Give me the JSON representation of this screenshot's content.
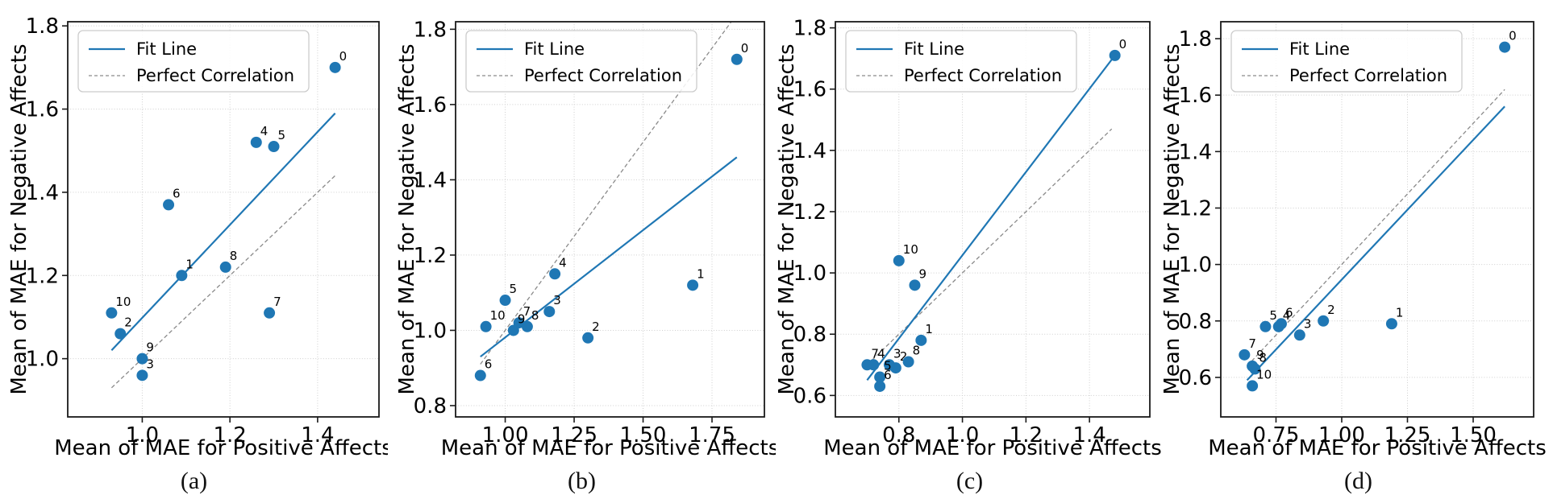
{
  "figure": {
    "xlabel": "Mean of MAE for Positive Affects",
    "ylabel": "Mean of MAE for Negative Affects",
    "legend": {
      "fit": {
        "label": "Fit Line",
        "color": "#1f77b4",
        "style": "solid"
      },
      "perfect": {
        "label": "Perfect Correlation",
        "color": "#8a8a8a",
        "style": "dashed"
      }
    },
    "colors": {
      "point": "#1f77b4",
      "fit_line": "#1f77b4",
      "perfect_line": "#8a8a8a",
      "grid": "#cfcfcf",
      "spine": "#1a1a1a",
      "text": "#000000"
    }
  },
  "chart_data": [
    {
      "type": "scatter",
      "caption": "(a)",
      "xlabel": "Mean of MAE for Positive Affects",
      "ylabel": "Mean of MAE for Negative Affects",
      "xlim": [
        0.83,
        1.54
      ],
      "ylim": [
        0.86,
        1.81
      ],
      "xticks": [
        1.0,
        1.2,
        1.4
      ],
      "xtick_labels": [
        "1.0",
        "1.2",
        "1.4"
      ],
      "yticks": [
        1.0,
        1.2,
        1.4,
        1.6,
        1.8
      ],
      "ytick_labels": [
        "1.0",
        "1.2",
        "1.4",
        "1.6",
        "1.8"
      ],
      "points": [
        {
          "label": "0",
          "x": 1.44,
          "y": 1.7
        },
        {
          "label": "1",
          "x": 1.09,
          "y": 1.2
        },
        {
          "label": "2",
          "x": 0.95,
          "y": 1.06
        },
        {
          "label": "3",
          "x": 1.0,
          "y": 0.96
        },
        {
          "label": "4",
          "x": 1.26,
          "y": 1.52
        },
        {
          "label": "5",
          "x": 1.3,
          "y": 1.51
        },
        {
          "label": "6",
          "x": 1.06,
          "y": 1.37
        },
        {
          "label": "7",
          "x": 1.29,
          "y": 1.11
        },
        {
          "label": "8",
          "x": 1.19,
          "y": 1.22
        },
        {
          "label": "9",
          "x": 1.0,
          "y": 1.0
        },
        {
          "label": "10",
          "x": 0.93,
          "y": 1.11
        }
      ],
      "fit_line": {
        "x1": 0.93,
        "y1": 1.02,
        "x2": 1.44,
        "y2": 1.59
      },
      "perfect_line": {
        "x1": 0.93,
        "y1": 0.93,
        "x2": 1.44,
        "y2": 1.44
      }
    },
    {
      "type": "scatter",
      "caption": "(b)",
      "xlabel": "Mean of MAE for Positive Affects",
      "ylabel": "Mean of MAE for Negative Affects",
      "xlim": [
        0.82,
        1.94
      ],
      "ylim": [
        0.77,
        1.82
      ],
      "xticks": [
        1.0,
        1.25,
        1.5,
        1.75
      ],
      "xtick_labels": [
        "1.00",
        "1.25",
        "1.50",
        "1.75"
      ],
      "yticks": [
        0.8,
        1.0,
        1.2,
        1.4,
        1.6,
        1.8
      ],
      "ytick_labels": [
        "0.8",
        "1.0",
        "1.2",
        "1.4",
        "1.6",
        "1.8"
      ],
      "points": [
        {
          "label": "0",
          "x": 1.84,
          "y": 1.72
        },
        {
          "label": "1",
          "x": 1.68,
          "y": 1.12
        },
        {
          "label": "2",
          "x": 1.3,
          "y": 0.98
        },
        {
          "label": "3",
          "x": 1.16,
          "y": 1.05
        },
        {
          "label": "4",
          "x": 1.18,
          "y": 1.15
        },
        {
          "label": "5",
          "x": 1.0,
          "y": 1.08
        },
        {
          "label": "6",
          "x": 0.91,
          "y": 0.88
        },
        {
          "label": "7",
          "x": 1.05,
          "y": 1.02
        },
        {
          "label": "8",
          "x": 1.08,
          "y": 1.01
        },
        {
          "label": "9",
          "x": 1.03,
          "y": 1.0
        },
        {
          "label": "10",
          "x": 0.93,
          "y": 1.01
        }
      ],
      "fit_line": {
        "x1": 0.91,
        "y1": 0.93,
        "x2": 1.84,
        "y2": 1.46
      },
      "perfect_line": {
        "x1": 0.91,
        "y1": 0.91,
        "x2": 1.84,
        "y2": 1.84
      }
    },
    {
      "type": "scatter",
      "caption": "(c)",
      "xlabel": "Mean of MAE for Positive Affects",
      "ylabel": "Mean of MAE for Negative Affects",
      "xlim": [
        0.6,
        1.59
      ],
      "ylim": [
        0.53,
        1.82
      ],
      "xticks": [
        0.8,
        1.0,
        1.2,
        1.4
      ],
      "xtick_labels": [
        "0.8",
        "1.0",
        "1.2",
        "1.4"
      ],
      "yticks": [
        0.6,
        0.8,
        1.0,
        1.2,
        1.4,
        1.6,
        1.8
      ],
      "ytick_labels": [
        "0.6",
        "0.8",
        "1.0",
        "1.2",
        "1.4",
        "1.6",
        "1.8"
      ],
      "points": [
        {
          "label": "0",
          "x": 1.48,
          "y": 1.71
        },
        {
          "label": "1",
          "x": 0.87,
          "y": 0.78
        },
        {
          "label": "2",
          "x": 0.79,
          "y": 0.69
        },
        {
          "label": "3",
          "x": 0.77,
          "y": 0.7
        },
        {
          "label": "4",
          "x": 0.72,
          "y": 0.7
        },
        {
          "label": "5",
          "x": 0.74,
          "y": 0.66
        },
        {
          "label": "6",
          "x": 0.74,
          "y": 0.63
        },
        {
          "label": "7",
          "x": 0.7,
          "y": 0.7
        },
        {
          "label": "8",
          "x": 0.83,
          "y": 0.71
        },
        {
          "label": "9",
          "x": 0.85,
          "y": 0.96
        },
        {
          "label": "10",
          "x": 0.8,
          "y": 1.04
        }
      ],
      "fit_line": {
        "x1": 0.7,
        "y1": 0.65,
        "x2": 1.48,
        "y2": 1.71
      },
      "perfect_line": {
        "x1": 0.7,
        "y1": 0.7,
        "x2": 1.47,
        "y2": 1.47
      }
    },
    {
      "type": "scatter",
      "caption": "(d)",
      "xlabel": "Mean of MAE for Positive Affects",
      "ylabel": "Mean of MAE for Negative Affects",
      "xlim": [
        0.54,
        1.73
      ],
      "ylim": [
        0.46,
        1.86
      ],
      "xticks": [
        0.75,
        1.0,
        1.25,
        1.5
      ],
      "xtick_labels": [
        "0.75",
        "1.00",
        "1.25",
        "1.50"
      ],
      "yticks": [
        0.6,
        0.8,
        1.0,
        1.2,
        1.4,
        1.6,
        1.8
      ],
      "ytick_labels": [
        "0.6",
        "0.8",
        "1.0",
        "1.2",
        "1.4",
        "1.6",
        "1.8"
      ],
      "points": [
        {
          "label": "0",
          "x": 1.62,
          "y": 1.77
        },
        {
          "label": "1",
          "x": 1.19,
          "y": 0.79
        },
        {
          "label": "2",
          "x": 0.93,
          "y": 0.8
        },
        {
          "label": "3",
          "x": 0.84,
          "y": 0.75
        },
        {
          "label": "4",
          "x": 0.76,
          "y": 0.78
        },
        {
          "label": "5",
          "x": 0.71,
          "y": 0.78
        },
        {
          "label": "6",
          "x": 0.77,
          "y": 0.79
        },
        {
          "label": "7",
          "x": 0.63,
          "y": 0.68
        },
        {
          "label": "8",
          "x": 0.67,
          "y": 0.63
        },
        {
          "label": "9",
          "x": 0.66,
          "y": 0.64
        },
        {
          "label": "10",
          "x": 0.66,
          "y": 0.57
        }
      ],
      "fit_line": {
        "x1": 0.64,
        "y1": 0.59,
        "x2": 1.62,
        "y2": 1.56
      },
      "perfect_line": {
        "x1": 0.64,
        "y1": 0.64,
        "x2": 1.62,
        "y2": 1.62
      }
    }
  ]
}
